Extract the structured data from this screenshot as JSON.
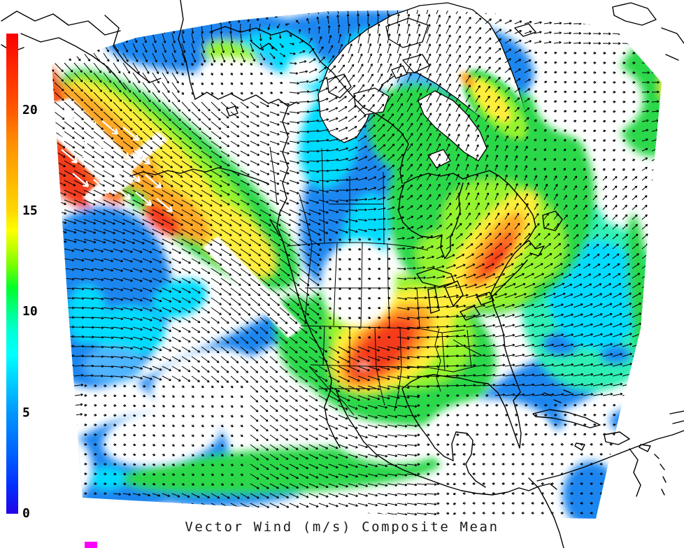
{
  "title": "Vector Wind (m/s) Composite Mean",
  "colorbar": {
    "orientation": "vertical",
    "unit": "m/s",
    "min": 0,
    "max": 23.8,
    "ticks": [
      {
        "value": 20,
        "label": "20"
      },
      {
        "value": 15,
        "label": "15"
      },
      {
        "value": 10,
        "label": "10"
      },
      {
        "value": 5,
        "label": "5"
      },
      {
        "value": 0,
        "label": "0"
      }
    ],
    "gradient_stops": [
      {
        "frac": 0.0,
        "color": "#2202e8"
      },
      {
        "frac": 0.06,
        "color": "#0330ff"
      },
      {
        "frac": 0.13,
        "color": "#0064ff"
      },
      {
        "frac": 0.21,
        "color": "#0096ff"
      },
      {
        "frac": 0.28,
        "color": "#00d2ff"
      },
      {
        "frac": 0.33,
        "color": "#00ffff"
      },
      {
        "frac": 0.38,
        "color": "#00ffd8"
      },
      {
        "frac": 0.42,
        "color": "#00ff8c"
      },
      {
        "frac": 0.47,
        "color": "#00ff2a"
      },
      {
        "frac": 0.52,
        "color": "#7dff00"
      },
      {
        "frac": 0.56,
        "color": "#ccff00"
      },
      {
        "frac": 0.59,
        "color": "#ffff00"
      },
      {
        "frac": 0.63,
        "color": "#ffd800"
      },
      {
        "frac": 0.7,
        "color": "#ffb400"
      },
      {
        "frac": 0.77,
        "color": "#ff9000"
      },
      {
        "frac": 0.84,
        "color": "#ff5a00"
      },
      {
        "frac": 0.92,
        "color": "#ff2d00"
      },
      {
        "frac": 1.0,
        "color": "#fa0000"
      }
    ]
  },
  "palette": {
    "blue": "#1d86f0",
    "light_blue": "#4fb4ff",
    "cyan": "#00dcff",
    "turquoise": "#2ff0b4",
    "green": "#2bd84a",
    "light_green": "#94f42e",
    "yellow": "#ffee3a",
    "orange": "#ffa726",
    "orange_red": "#ff6a22",
    "red": "#f43a1e",
    "white": "#ffffff",
    "arrow": "#000000",
    "coast": "#000000",
    "magenta": "#ff00ff"
  },
  "branding": {
    "logo_color": "#ff00ff"
  },
  "chart_data": {
    "type": "heatmap",
    "title": "Vector Wind (m/s) Composite Mean",
    "variable": "vector wind composite mean speed",
    "units": "m/s",
    "region": "North America and adjacent oceans (polar-stereographic style view)",
    "colorbar_ticks": [
      0,
      5,
      10,
      15,
      20
    ],
    "colorbar_range": [
      0,
      23.8
    ],
    "overlay": "wind direction arrows on a regular grid; white arrows mark the Gulf of Alaska band where mean speed exceeds the colorbar maximum",
    "features": [
      {
        "region": "Gulf of Alaska / eastern North Pacific jet (white-arrow streaks)",
        "mean_speed_ms": 24
      },
      {
        "region": "Pacific jet band toward British Columbia",
        "mean_speed_ms": 18
      },
      {
        "region": "Southern Great Plains jet core (Texas-Oklahoma-Kansas)",
        "mean_speed_ms": 22
      },
      {
        "region": "Northeast US / New England - Quebec band",
        "mean_speed_ms": 20
      },
      {
        "region": "Southeast Greenland coastal band",
        "mean_speed_ms": 15
      },
      {
        "region": "Eastern Canada / Quebec",
        "mean_speed_ms": 10
      },
      {
        "region": "Canadian Arctic and Hudson Bay",
        "mean_speed_ms": 7
      },
      {
        "region": "Subtropical western Atlantic",
        "mean_speed_ms": 8
      },
      {
        "region": "Gulf of Mexico and Caribbean",
        "mean_speed_ms": 2
      },
      {
        "region": "Northern Rockies / Montana calm area",
        "mean_speed_ms": 2
      },
      {
        "region": "Subtropical eastern Pacific calm area",
        "mean_speed_ms": 3
      },
      {
        "region": "Tropical Pacific band south of Mexico",
        "mean_speed_ms": 8
      }
    ]
  }
}
